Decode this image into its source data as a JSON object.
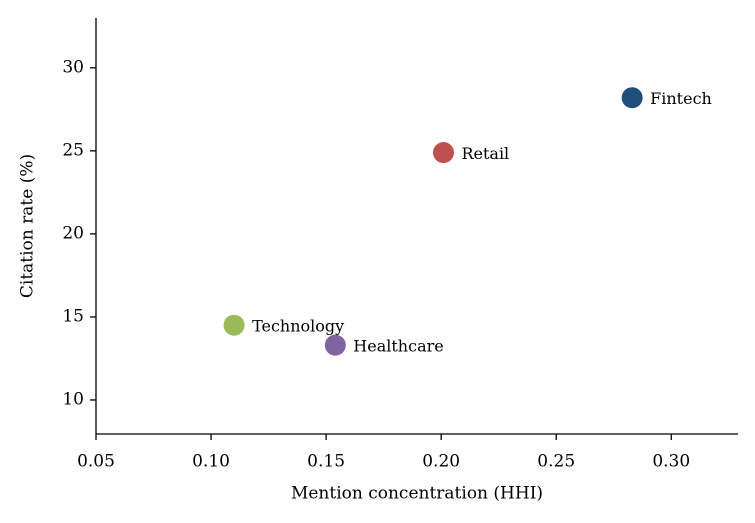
{
  "chart_data": {
    "type": "scatter",
    "xlabel": "Mention concentration (HHI)",
    "ylabel": "Citation rate (%)",
    "categories": [
      "Fintech",
      "Retail",
      "Technology",
      "Healthcare"
    ],
    "x": [
      0.283,
      0.201,
      0.11,
      0.154
    ],
    "values": [
      28.2,
      24.9,
      14.5,
      13.3
    ],
    "colors": [
      "#1f4e79",
      "#c0504d",
      "#9bbb59",
      "#8064a2"
    ],
    "xlim": [
      0.05,
      0.329
    ],
    "ylim": [
      7.95,
      33.0
    ],
    "xticks": [
      0.05,
      {
        "value": 0.1,
        "label": "0.10"
      },
      0.15,
      {
        "value": 0.2,
        "label": "0.20"
      },
      0.25,
      {
        "value": 0.3,
        "label": "0.30"
      }
    ],
    "yticks": [
      10,
      15,
      20,
      25,
      30
    ],
    "grid": false
  }
}
